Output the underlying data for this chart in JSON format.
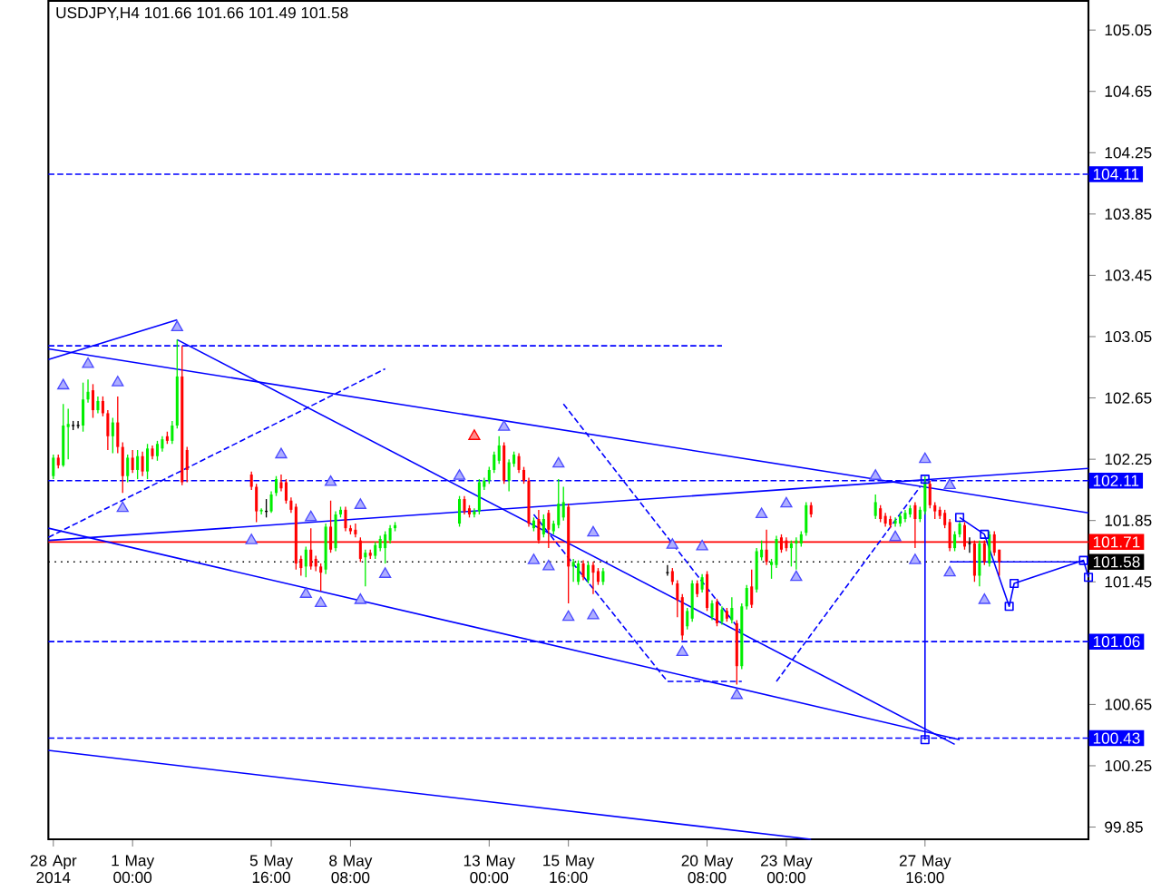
{
  "chart_data": {
    "type": "candlestick",
    "title": "USDJPY,H4  101.66 101.66 101.49 101.58",
    "x": [
      "2014-04-28T08:00",
      "2014-04-28T12:00",
      "2014-04-28T16:00",
      "2014-04-28T20:00",
      "2014-04-29T00:00",
      "2014-04-29T04:00",
      "2014-04-29T08:00",
      "2014-04-29T12:00",
      "2014-04-29T16:00",
      "2014-04-29T20:00",
      "2014-04-30T00:00",
      "2014-04-30T04:00",
      "2014-04-30T08:00",
      "2014-04-30T12:00",
      "2014-04-30T16:00",
      "2014-04-30T20:00",
      "2014-05-01T00:00",
      "2014-05-01T04:00",
      "2014-05-01T08:00",
      "2014-05-01T12:00",
      "2014-05-01T16:00",
      "2014-05-01T20:00",
      "2014-05-02T00:00",
      "2014-05-02T04:00",
      "2014-05-02T08:00",
      "2014-05-02T12:00",
      "2014-05-02T16:00",
      "2014-05-02T20:00",
      "2014-05-05T00:00",
      "2014-05-05T04:00",
      "2014-05-05T08:00",
      "2014-05-05T12:00",
      "2014-05-05T16:00",
      "2014-05-05T20:00",
      "2014-05-06T00:00",
      "2014-05-06T04:00",
      "2014-05-06T08:00",
      "2014-05-06T12:00",
      "2014-05-06T16:00",
      "2014-05-06T20:00",
      "2014-05-07T00:00",
      "2014-05-07T04:00",
      "2014-05-07T08:00",
      "2014-05-07T12:00",
      "2014-05-07T16:00",
      "2014-05-07T20:00",
      "2014-05-08T00:00",
      "2014-05-08T04:00",
      "2014-05-08T08:00",
      "2014-05-08T12:00",
      "2014-05-08T16:00",
      "2014-05-08T20:00",
      "2014-05-09T00:00",
      "2014-05-09T04:00",
      "2014-05-09T08:00",
      "2014-05-09T12:00",
      "2014-05-09T16:00",
      "2014-05-09T20:00",
      "2014-05-12T00:00",
      "2014-05-12T04:00",
      "2014-05-12T08:00",
      "2014-05-12T12:00",
      "2014-05-12T16:00",
      "2014-05-12T20:00",
      "2014-05-13T00:00",
      "2014-05-13T04:00",
      "2014-05-13T08:00",
      "2014-05-13T12:00",
      "2014-05-13T16:00",
      "2014-05-13T20:00",
      "2014-05-14T00:00",
      "2014-05-14T04:00",
      "2014-05-14T08:00",
      "2014-05-14T12:00",
      "2014-05-14T16:00",
      "2014-05-14T20:00",
      "2014-05-15T00:00",
      "2014-05-15T04:00",
      "2014-05-15T08:00",
      "2014-05-15T12:00",
      "2014-05-15T16:00",
      "2014-05-15T20:00",
      "2014-05-16T00:00",
      "2014-05-16T04:00",
      "2014-05-16T08:00",
      "2014-05-16T12:00",
      "2014-05-16T16:00",
      "2014-05-16T20:00",
      "2014-05-19T00:00",
      "2014-05-19T04:00",
      "2014-05-19T08:00",
      "2014-05-19T12:00",
      "2014-05-19T16:00",
      "2014-05-19T20:00",
      "2014-05-20T00:00",
      "2014-05-20T04:00",
      "2014-05-20T08:00",
      "2014-05-20T12:00",
      "2014-05-20T16:00",
      "2014-05-20T20:00",
      "2014-05-21T00:00",
      "2014-05-21T04:00",
      "2014-05-21T08:00",
      "2014-05-21T12:00",
      "2014-05-21T16:00",
      "2014-05-21T20:00",
      "2014-05-22T00:00",
      "2014-05-22T04:00",
      "2014-05-22T08:00",
      "2014-05-22T12:00",
      "2014-05-22T16:00",
      "2014-05-22T20:00",
      "2014-05-23T00:00",
      "2014-05-23T04:00",
      "2014-05-23T08:00",
      "2014-05-23T12:00",
      "2014-05-23T16:00",
      "2014-05-23T20:00",
      "2014-05-26T00:00",
      "2014-05-26T04:00",
      "2014-05-26T08:00",
      "2014-05-26T12:00",
      "2014-05-26T16:00",
      "2014-05-26T20:00",
      "2014-05-27T00:00",
      "2014-05-27T04:00",
      "2014-05-27T08:00",
      "2014-05-27T12:00",
      "2014-05-27T16:00",
      "2014-05-27T20:00",
      "2014-05-28T00:00",
      "2014-05-28T04:00",
      "2014-05-28T08:00",
      "2014-05-28T12:00",
      "2014-05-28T16:00",
      "2014-05-28T20:00",
      "2014-05-29T00:00",
      "2014-05-29T04:00",
      "2014-05-29T08:00",
      "2014-05-29T12:00",
      "2014-05-29T16:00",
      "2014-05-29T20:00",
      "2014-05-30T00:00",
      "2014-05-30T04:00"
    ],
    "ohlc": [
      [
        102.14,
        102.28,
        102.12,
        102.26
      ],
      [
        102.26,
        102.28,
        102.19,
        102.21
      ],
      [
        102.21,
        102.61,
        102.2,
        102.47
      ],
      [
        102.46,
        102.58,
        102.25,
        102.48
      ],
      [
        102.47,
        102.5,
        102.44,
        102.47
      ],
      [
        102.47,
        102.5,
        102.45,
        102.47
      ],
      [
        102.47,
        102.75,
        102.43,
        102.64
      ],
      [
        102.64,
        102.77,
        102.62,
        102.69
      ],
      [
        102.7,
        102.74,
        102.52,
        102.57
      ],
      [
        102.57,
        102.66,
        102.55,
        102.63
      ],
      [
        102.63,
        102.66,
        102.53,
        102.55
      ],
      [
        102.55,
        102.57,
        102.31,
        102.4
      ],
      [
        102.4,
        102.52,
        102.29,
        102.49
      ],
      [
        102.49,
        102.66,
        102.29,
        102.33
      ],
      [
        102.33,
        102.36,
        102.03,
        102.14
      ],
      [
        102.14,
        102.28,
        102.1,
        102.26
      ],
      [
        102.26,
        102.31,
        102.16,
        102.18
      ],
      [
        102.18,
        102.31,
        102.12,
        102.27
      ],
      [
        102.27,
        102.3,
        102.14,
        102.17
      ],
      [
        102.17,
        102.35,
        102.12,
        102.32
      ],
      [
        102.32,
        102.34,
        102.25,
        102.27
      ],
      [
        102.27,
        102.37,
        102.24,
        102.35
      ],
      [
        102.32,
        102.4,
        102.3,
        102.38
      ],
      [
        102.4,
        102.43,
        102.35,
        102.37
      ],
      [
        102.37,
        102.5,
        102.35,
        102.47
      ],
      [
        102.47,
        103.03,
        102.45,
        102.79
      ],
      [
        102.79,
        102.99,
        102.08,
        102.1
      ],
      [
        102.31,
        102.33,
        102.1,
        102.18
      ],
      [
        102.15,
        102.17,
        102.05,
        102.07
      ],
      [
        102.07,
        102.09,
        101.84,
        101.91
      ],
      [
        101.91,
        101.93,
        101.89,
        101.92
      ],
      [
        101.91,
        101.99,
        101.87,
        101.91
      ],
      [
        101.91,
        102.04,
        101.9,
        102.02
      ],
      [
        102.03,
        102.14,
        102.01,
        102.12
      ],
      [
        102.1,
        102.15,
        102.04,
        102.06
      ],
      [
        102.1,
        102.12,
        101.96,
        101.98
      ],
      [
        101.98,
        102.0,
        101.9,
        101.92
      ],
      [
        101.94,
        101.96,
        101.53,
        101.57
      ],
      [
        101.6,
        101.62,
        101.49,
        101.54
      ],
      [
        101.55,
        101.68,
        101.48,
        101.66
      ],
      [
        101.66,
        101.8,
        101.53,
        101.55
      ],
      [
        101.6,
        101.62,
        101.52,
        101.55
      ],
      [
        101.55,
        101.57,
        101.39,
        101.51
      ],
      [
        101.53,
        101.83,
        101.5,
        101.81
      ],
      [
        101.81,
        101.98,
        101.64,
        101.66
      ],
      [
        101.67,
        101.91,
        101.65,
        101.89
      ],
      [
        101.89,
        101.94,
        101.87,
        101.92
      ],
      [
        101.92,
        101.94,
        101.78,
        101.8
      ],
      [
        101.8,
        101.82,
        101.76,
        101.78
      ],
      [
        101.79,
        101.83,
        101.74,
        101.76
      ],
      [
        101.72,
        101.74,
        101.58,
        101.6
      ],
      [
        101.61,
        101.66,
        101.42,
        101.64
      ],
      [
        101.64,
        101.66,
        101.6,
        101.62
      ],
      [
        101.62,
        101.71,
        101.6,
        101.69
      ],
      [
        101.67,
        101.75,
        101.65,
        101.73
      ],
      [
        101.67,
        101.78,
        101.57,
        101.76
      ],
      [
        101.72,
        101.82,
        101.7,
        101.8
      ],
      [
        101.8,
        101.84,
        101.78,
        101.82
      ],
      [
        101.83,
        102.01,
        101.81,
        101.99
      ],
      [
        101.99,
        102.01,
        101.89,
        101.91
      ],
      [
        101.93,
        101.95,
        101.87,
        101.89
      ],
      [
        101.89,
        101.93,
        101.87,
        101.91
      ],
      [
        101.91,
        102.12,
        101.89,
        102.1
      ],
      [
        102.07,
        102.13,
        102.05,
        102.11
      ],
      [
        102.11,
        102.2,
        102.09,
        102.18
      ],
      [
        102.18,
        102.3,
        102.16,
        102.28
      ],
      [
        102.24,
        102.4,
        102.22,
        102.34
      ],
      [
        102.34,
        102.36,
        102.09,
        102.11
      ],
      [
        102.11,
        102.25,
        102.04,
        102.23
      ],
      [
        102.22,
        102.3,
        102.2,
        102.28
      ],
      [
        102.27,
        102.29,
        102.16,
        102.18
      ],
      [
        102.18,
        102.2,
        102.09,
        102.11
      ],
      [
        102.11,
        102.13,
        101.81,
        101.83
      ],
      [
        101.8,
        101.87,
        101.78,
        101.85
      ],
      [
        101.86,
        101.92,
        101.7,
        101.72
      ],
      [
        101.76,
        101.89,
        101.74,
        101.86
      ],
      [
        101.9,
        101.92,
        101.67,
        101.79
      ],
      [
        101.78,
        101.85,
        101.76,
        101.83
      ],
      [
        101.82,
        102.12,
        101.8,
        101.96
      ],
      [
        101.87,
        102.07,
        101.85,
        101.97
      ],
      [
        101.94,
        101.96,
        101.31,
        101.55
      ],
      [
        101.55,
        101.6,
        101.45,
        101.58
      ],
      [
        101.45,
        101.59,
        101.43,
        101.57
      ],
      [
        101.57,
        101.59,
        101.46,
        101.48
      ],
      [
        101.46,
        101.58,
        101.44,
        101.56
      ],
      [
        101.56,
        101.58,
        101.37,
        101.51
      ],
      [
        101.52,
        101.54,
        101.43,
        101.45
      ],
      [
        101.45,
        101.54,
        101.43,
        101.52
      ],
      [
        101.51,
        101.56,
        101.49,
        101.51
      ],
      [
        101.52,
        101.54,
        101.43,
        101.45
      ],
      [
        101.44,
        101.46,
        101.22,
        101.33
      ],
      [
        101.35,
        101.37,
        101.07,
        101.1
      ],
      [
        101.16,
        101.28,
        101.14,
        101.26
      ],
      [
        101.21,
        101.46,
        101.19,
        101.44
      ],
      [
        101.44,
        101.46,
        101.35,
        101.37
      ],
      [
        101.4,
        101.5,
        101.38,
        101.48
      ],
      [
        101.5,
        101.52,
        101.26,
        101.28
      ],
      [
        101.22,
        101.33,
        101.2,
        101.31
      ],
      [
        101.32,
        101.34,
        101.16,
        101.18
      ],
      [
        101.19,
        101.29,
        101.17,
        101.27
      ],
      [
        101.26,
        101.28,
        101.19,
        101.21
      ],
      [
        101.2,
        101.35,
        101.18,
        101.28
      ],
      [
        101.18,
        101.2,
        100.78,
        100.9
      ],
      [
        100.9,
        101.31,
        100.88,
        101.29
      ],
      [
        101.29,
        101.43,
        101.27,
        101.41
      ],
      [
        101.42,
        101.53,
        101.28,
        101.3
      ],
      [
        101.4,
        101.67,
        101.38,
        101.65
      ],
      [
        101.61,
        101.72,
        101.59,
        101.66
      ],
      [
        101.66,
        101.79,
        101.56,
        101.58
      ],
      [
        101.56,
        101.6,
        101.47,
        101.58
      ],
      [
        101.56,
        101.75,
        101.54,
        101.73
      ],
      [
        101.74,
        101.76,
        101.64,
        101.66
      ],
      [
        101.72,
        101.74,
        101.65,
        101.67
      ],
      [
        101.67,
        101.72,
        101.55,
        101.7
      ],
      [
        101.7,
        101.74,
        101.53,
        101.72
      ],
      [
        101.7,
        101.78,
        101.68,
        101.76
      ],
      [
        101.77,
        101.97,
        101.75,
        101.95
      ],
      [
        101.95,
        101.97,
        101.87,
        101.89
      ],
      [
        101.88,
        102.02,
        101.86,
        101.97
      ],
      [
        101.93,
        101.95,
        101.84,
        101.86
      ],
      [
        101.88,
        101.9,
        101.81,
        101.83
      ],
      [
        101.86,
        101.88,
        101.8,
        101.82
      ],
      [
        101.83,
        101.87,
        101.81,
        101.85
      ],
      [
        101.83,
        101.9,
        101.81,
        101.88
      ],
      [
        101.86,
        101.92,
        101.84,
        101.9
      ],
      [
        101.89,
        101.95,
        101.87,
        101.93
      ],
      [
        101.95,
        101.97,
        101.67,
        101.86
      ],
      [
        101.86,
        101.94,
        101.84,
        101.92
      ],
      [
        101.91,
        102.14,
        101.89,
        102.1
      ],
      [
        102.09,
        102.11,
        101.93,
        101.95
      ],
      [
        101.95,
        101.97,
        101.86,
        101.91
      ],
      [
        101.92,
        101.94,
        101.86,
        101.88
      ],
      [
        101.9,
        101.92,
        101.8,
        101.82
      ],
      [
        101.84,
        101.86,
        101.65,
        101.67
      ],
      [
        101.67,
        101.78,
        101.65,
        101.76
      ],
      [
        101.76,
        101.85,
        101.74,
        101.83
      ],
      [
        101.82,
        101.84,
        101.66,
        101.68
      ],
      [
        101.7,
        101.74,
        101.64,
        101.7
      ],
      [
        101.7,
        101.72,
        101.45,
        101.49
      ],
      [
        101.49,
        101.72,
        101.42,
        101.7
      ],
      [
        101.7,
        101.72,
        101.56,
        101.58
      ],
      [
        101.57,
        101.78,
        101.55,
        101.76
      ],
      [
        101.76,
        101.78,
        101.62,
        101.64
      ],
      [
        101.66,
        101.66,
        101.49,
        101.58
      ]
    ],
    "colors": [
      "#00ee00",
      "#ff0000",
      "#00ee00",
      "#00ee00",
      "#000000",
      "#000000",
      "#00ee00",
      "#00ee00",
      "#ff0000",
      "#00ee00",
      "#ff0000",
      "#ff0000",
      "#00ee00",
      "#ff0000",
      "#ff0000",
      "#00ee00",
      "#ff0000",
      "#00ee00",
      "#ff0000",
      "#00ee00",
      "#ff0000",
      "#00ee00",
      "#00ee00",
      "#ff0000",
      "#00ee00",
      "#00ee00",
      "#ff0000",
      "#ff0000",
      "#ff0000",
      "#ff0000",
      "#00ee00",
      "#000000",
      "#00ee00",
      "#00ee00",
      "#ff0000",
      "#ff0000",
      "#ff0000",
      "#ff0000",
      "#ff0000",
      "#00ee00",
      "#ff0000",
      "#ff0000",
      "#ff0000",
      "#00ee00",
      "#ff0000",
      "#00ee00",
      "#00ee00",
      "#ff0000",
      "#ff0000",
      "#ff0000",
      "#ff0000",
      "#00ee00",
      "#ff0000",
      "#00ee00",
      "#00ee00",
      "#00ee00",
      "#00ee00",
      "#00ee00",
      "#00ee00",
      "#ff0000",
      "#ff0000",
      "#00ee00",
      "#00ee00",
      "#00ee00",
      "#00ee00",
      "#00ee00",
      "#00ee00",
      "#ff0000",
      "#00ee00",
      "#00ee00",
      "#ff0000",
      "#ff0000",
      "#ff0000",
      "#00ee00",
      "#ff0000",
      "#00ee00",
      "#ff0000",
      "#00ee00",
      "#00ee00",
      "#00ee00",
      "#ff0000",
      "#00ee00",
      "#00ee00",
      "#ff0000",
      "#00ee00",
      "#ff0000",
      "#ff0000",
      "#00ee00",
      "#000000",
      "#ff0000",
      "#ff0000",
      "#ff0000",
      "#00ee00",
      "#00ee00",
      "#ff0000",
      "#00ee00",
      "#ff0000",
      "#00ee00",
      "#ff0000",
      "#00ee00",
      "#ff0000",
      "#00ee00",
      "#ff0000",
      "#00ee00",
      "#00ee00",
      "#ff0000",
      "#00ee00",
      "#00ee00",
      "#ff0000",
      "#00ee00",
      "#00ee00",
      "#ff0000",
      "#ff0000",
      "#00ee00",
      "#00ee00",
      "#00ee00",
      "#00ee00",
      "#ff0000",
      "#00ee00",
      "#ff0000",
      "#ff0000",
      "#ff0000",
      "#00ee00",
      "#00ee00",
      "#00ee00",
      "#00ee00",
      "#ff0000",
      "#00ee00",
      "#00ee00",
      "#ff0000",
      "#ff0000",
      "#ff0000",
      "#ff0000",
      "#ff0000",
      "#00ee00",
      "#00ee00",
      "#ff0000",
      "#000000",
      "#ff0000",
      "#00ee00",
      "#ff0000",
      "#00ee00",
      "#ff0000",
      "#ff0000"
    ],
    "xlim": [
      "2014-04-28T04:00",
      "2014-06-02T04:00"
    ],
    "xticks": [
      {
        "value": "2014-04-28T08:00",
        "label": "28 Apr 2014"
      },
      {
        "value": "2014-05-01T00:00",
        "label": "1 May 00:00"
      },
      {
        "value": "2014-05-05T16:00",
        "label": "5 May 16:00"
      },
      {
        "value": "2014-05-08T08:00",
        "label": "8 May 08:00"
      },
      {
        "value": "2014-05-13T00:00",
        "label": "13 May 00:00"
      },
      {
        "value": "2014-05-15T16:00",
        "label": "15 May 16:00"
      },
      {
        "value": "2014-05-20T08:00",
        "label": "20 May 08:00"
      },
      {
        "value": "2014-05-23T00:00",
        "label": "23 May 00:00"
      },
      {
        "value": "2014-05-27T16:00",
        "label": "27 May 16:00"
      }
    ],
    "ylim": [
      99.77,
      105.24
    ],
    "yticks": [
      99.85,
      100.25,
      100.65,
      {
        "value": 101.05,
        "label": null
      },
      101.45,
      101.85,
      102.25,
      102.65,
      103.05,
      103.45,
      103.85,
      104.25,
      104.65,
      105.05
    ],
    "ref_lines": [
      {
        "axis": "y",
        "value": 104.11,
        "label": "104.11",
        "color": "#0000ff",
        "line_style": "dashed"
      },
      {
        "axis": "y",
        "value": 102.11,
        "label": "102.11",
        "color": "#0000ff",
        "line_style": "dashed"
      },
      {
        "axis": "y",
        "value": 101.71,
        "label": "101.71",
        "color": "#ff0000",
        "line_style": "solid"
      },
      {
        "axis": "y",
        "value": 101.58,
        "label": "101.58",
        "color": "#000000",
        "line_style": "dotted"
      },
      {
        "axis": "y",
        "value": 101.06,
        "label": "101.06",
        "color": "#0000ff",
        "line_style": "dashed"
      },
      {
        "axis": "y",
        "value": 100.43,
        "label": "100.43",
        "color": "#0000ff",
        "line_style": "dashed"
      }
    ],
    "series": [
      {
        "type": "line",
        "color": "#0000ff",
        "line_style": "solid",
        "x": [
          "2014-04-28T04:00",
          "2014-06-02T04:00"
        ],
        "values": [
          102.97,
          101.9
        ]
      },
      {
        "type": "line",
        "color": "#0000ff",
        "line_style": "solid",
        "x": [
          "2014-04-28T04:00",
          "2014-05-02T12:00"
        ],
        "values": [
          102.9,
          103.16
        ]
      },
      {
        "type": "line",
        "color": "#0000ff",
        "line_style": "solid",
        "x": [
          "2014-05-02T12:00",
          "2014-05-28T16:00"
        ],
        "values": [
          103.03,
          100.39
        ]
      },
      {
        "type": "line",
        "color": "#0000ff",
        "line_style": "solid",
        "x": [
          "2014-04-28T04:00",
          "2014-06-02T04:00"
        ],
        "values": [
          101.72,
          102.19
        ]
      },
      {
        "type": "line",
        "color": "#0000ff",
        "line_style": "solid",
        "x": [
          "2014-04-28T04:00",
          "2014-05-28T20:00"
        ],
        "values": [
          101.8,
          100.42
        ]
      },
      {
        "type": "line",
        "color": "#0000ff",
        "line_style": "solid",
        "x": [
          "2014-04-28T04:00",
          "2014-05-23T20:00"
        ],
        "values": [
          100.35,
          99.77
        ]
      },
      {
        "type": "line",
        "color": "#0000ff",
        "line_style": "dashed",
        "x": [
          "2014-04-28T04:00",
          "2014-05-20T20:00"
        ],
        "values": [
          102.99,
          102.99
        ]
      },
      {
        "type": "line",
        "color": "#0000ff",
        "line_style": "dashed",
        "x": [
          "2014-04-28T04:00",
          "2014-05-09T12:00"
        ],
        "values": [
          101.74,
          102.84
        ]
      },
      {
        "type": "line",
        "color": "#0000ff",
        "line_style": "dashed",
        "x": [
          "2014-05-15T12:00",
          "2014-05-21T12:00"
        ],
        "values": [
          102.61,
          101.12
        ]
      },
      {
        "type": "line",
        "color": "#0000ff",
        "line_style": "dashed",
        "x": [
          "2014-05-14T12:00",
          "2014-05-19T00:00",
          "2014-05-21T12:00"
        ],
        "values": [
          101.89,
          100.8,
          100.8
        ]
      },
      {
        "type": "line",
        "color": "#0000ff",
        "line_style": "dashed",
        "x": [
          "2014-05-22T16:00",
          "2014-05-27T12:00"
        ],
        "values": [
          100.8,
          102.07
        ]
      },
      {
        "type": "line",
        "color": "#0000ff",
        "line_style": "solid",
        "marker": "square",
        "x": [
          "2014-05-27T16:00",
          "2014-05-27T16:00"
        ],
        "values": [
          102.12,
          100.42
        ]
      },
      {
        "type": "line",
        "color": "#0000ff",
        "line_style": "solid",
        "x": [
          "2014-05-28T12:00",
          "2014-06-02T00:00"
        ],
        "values": [
          101.58,
          101.58
        ]
      },
      {
        "type": "line",
        "color": "#0000ff",
        "line_style": "solid",
        "marker": "square",
        "x": [
          "2014-05-28T20:00",
          "2014-05-29T16:00",
          "2014-05-30T12:00",
          "2014-05-30T16:00",
          "2014-06-02T00:00",
          "2014-06-02T04:00"
        ],
        "values": [
          101.87,
          101.76,
          101.29,
          101.44,
          101.59,
          101.48
        ]
      },
      {
        "type": "scatter",
        "color": "#4a4aff",
        "marker": "triangle",
        "x": [
          "2014-04-28T16:00",
          "2014-04-29T12:00",
          "2014-04-30T12:00",
          "2014-05-02T12:00",
          "2014-05-06T00:00",
          "2014-05-07T00:00",
          "2014-05-07T16:00",
          "2014-05-08T16:00",
          "2014-05-12T00:00",
          "2014-05-13T12:00",
          "2014-05-15T08:00",
          "2014-05-16T12:00",
          "2014-05-19T04:00",
          "2014-05-20T04:00",
          "2014-05-22T04:00",
          "2014-05-23T00:00",
          "2014-05-26T00:00",
          "2014-05-27T16:00",
          "2014-05-28T12:00"
        ],
        "values": [
          102.73,
          102.87,
          102.75,
          103.11,
          102.28,
          101.87,
          102.1,
          101.95,
          102.14,
          102.46,
          102.22,
          101.77,
          101.69,
          101.68,
          101.89,
          101.96,
          102.14,
          102.25,
          102.08
        ]
      },
      {
        "type": "scatter",
        "color": "#4a4aff",
        "marker": "triangle",
        "x": [
          "2014-04-30T16:00",
          "2014-05-05T00:00",
          "2014-05-06T20:00",
          "2014-05-07T08:00",
          "2014-05-08T16:00",
          "2014-05-09T12:00",
          "2014-05-14T12:00",
          "2014-05-15T00:00",
          "2014-05-15T16:00",
          "2014-05-16T12:00",
          "2014-05-19T12:00",
          "2014-05-21T08:00",
          "2014-05-23T08:00",
          "2014-05-26T16:00",
          "2014-05-27T08:00",
          "2014-05-28T12:00",
          "2014-05-29T16:00"
        ],
        "values": [
          101.93,
          101.72,
          101.37,
          101.31,
          101.33,
          101.5,
          101.59,
          101.55,
          101.22,
          101.23,
          100.99,
          100.71,
          101.48,
          101.74,
          101.59,
          101.51,
          101.33
        ]
      },
      {
        "type": "scatter",
        "color": "#ff0000",
        "marker": "triangle",
        "x": [
          "2014-05-12T12:00"
        ],
        "values": [
          102.4
        ]
      }
    ]
  }
}
